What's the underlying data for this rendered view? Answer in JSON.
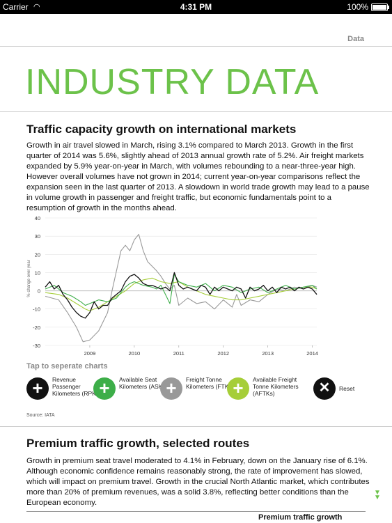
{
  "status_bar": {
    "carrier": "Carrier",
    "wifi_icon": "wifi-icon",
    "time": "4:31 PM",
    "battery": "100%"
  },
  "header": {
    "section": "Data"
  },
  "page_title": "INDUSTRY DATA",
  "section1": {
    "heading": "Traffic capacity growth on international markets",
    "body": "Growth in air travel slowed in March, rising 3.1% compared to March 2013. Growth in the first quarter of 2014 was 5.6%, slightly ahead of 2013 annual growth rate of 5.2%. Air freight markets expanded by 5.9% year-on-year in March, with volumes rebounding to a near-three-year high. However overall volumes have not grown in 2014; current year-on-year comparisons reflect the expansion seen in the last quarter of 2013. A slowdown in world trade growth may lead to a pause in volume growth in passenger and freight traffic, but economic fundamentals point to a resumption of growth in the months ahead."
  },
  "chart_data": {
    "type": "line",
    "ylabel": "% change over year",
    "ylim": [
      -30,
      40
    ],
    "yticks": [
      "40",
      "30",
      "20",
      "10",
      "0",
      "-10",
      "-20",
      "-30"
    ],
    "xticks": [
      "2009",
      "2010",
      "2011",
      "2012",
      "2013",
      "2014"
    ],
    "x_range": [
      2008.0,
      2014.1
    ],
    "series": [
      {
        "name": "RPKs",
        "color": "#111111",
        "points": [
          [
            2008.0,
            2
          ],
          [
            2008.1,
            5
          ],
          [
            2008.2,
            1
          ],
          [
            2008.3,
            3
          ],
          [
            2008.4,
            -2
          ],
          [
            2008.5,
            -5
          ],
          [
            2008.6,
            -9
          ],
          [
            2008.7,
            -12
          ],
          [
            2008.8,
            -14
          ],
          [
            2008.9,
            -15
          ],
          [
            2009.0,
            -12
          ],
          [
            2009.1,
            -6
          ],
          [
            2009.2,
            -10
          ],
          [
            2009.3,
            -8
          ],
          [
            2009.4,
            -8
          ],
          [
            2009.5,
            -4
          ],
          [
            2009.6,
            -2
          ],
          [
            2009.7,
            0
          ],
          [
            2009.8,
            5
          ],
          [
            2009.9,
            8
          ],
          [
            2010.0,
            9
          ],
          [
            2010.1,
            7
          ],
          [
            2010.2,
            4
          ],
          [
            2010.3,
            3
          ],
          [
            2010.4,
            3
          ],
          [
            2010.5,
            2
          ],
          [
            2010.6,
            1
          ],
          [
            2010.7,
            2
          ],
          [
            2010.8,
            0
          ],
          [
            2010.9,
            10
          ],
          [
            2011.0,
            3
          ],
          [
            2011.1,
            1
          ],
          [
            2011.2,
            2
          ],
          [
            2011.3,
            1
          ],
          [
            2011.4,
            0
          ],
          [
            2011.5,
            3
          ],
          [
            2011.6,
            2
          ],
          [
            2011.7,
            -2
          ],
          [
            2011.8,
            2
          ],
          [
            2011.9,
            0
          ],
          [
            2012.0,
            2
          ],
          [
            2012.1,
            1
          ],
          [
            2012.2,
            0
          ],
          [
            2012.3,
            2
          ],
          [
            2012.4,
            1
          ],
          [
            2012.5,
            -4
          ],
          [
            2012.6,
            2
          ],
          [
            2012.7,
            0
          ],
          [
            2012.8,
            1
          ],
          [
            2012.9,
            3
          ],
          [
            2013.0,
            0
          ],
          [
            2013.1,
            2
          ],
          [
            2013.2,
            -1
          ],
          [
            2013.3,
            2
          ],
          [
            2013.4,
            1
          ],
          [
            2013.5,
            2
          ],
          [
            2013.6,
            0
          ],
          [
            2013.7,
            2
          ],
          [
            2013.8,
            1
          ],
          [
            2013.9,
            2
          ],
          [
            2014.0,
            1
          ],
          [
            2014.1,
            -2
          ]
        ]
      },
      {
        "name": "ASKs",
        "color": "#3dae49",
        "points": [
          [
            2008.0,
            1
          ],
          [
            2008.2,
            3
          ],
          [
            2008.4,
            -1
          ],
          [
            2008.6,
            -3
          ],
          [
            2008.8,
            -6
          ],
          [
            2008.9,
            -8
          ],
          [
            2009.0,
            -7
          ],
          [
            2009.2,
            -5
          ],
          [
            2009.4,
            -6
          ],
          [
            2009.6,
            -4
          ],
          [
            2009.8,
            2
          ],
          [
            2009.9,
            4
          ],
          [
            2010.0,
            5
          ],
          [
            2010.2,
            3
          ],
          [
            2010.4,
            2
          ],
          [
            2010.5,
            1
          ],
          [
            2010.6,
            3
          ],
          [
            2010.7,
            -2
          ],
          [
            2010.8,
            -7
          ],
          [
            2010.9,
            9
          ],
          [
            2011.0,
            5
          ],
          [
            2011.2,
            3
          ],
          [
            2011.4,
            2
          ],
          [
            2011.6,
            4
          ],
          [
            2011.8,
            0
          ],
          [
            2012.0,
            3
          ],
          [
            2012.2,
            2
          ],
          [
            2012.4,
            -1
          ],
          [
            2012.6,
            1
          ],
          [
            2012.8,
            2
          ],
          [
            2013.0,
            -1
          ],
          [
            2013.2,
            1
          ],
          [
            2013.4,
            3
          ],
          [
            2013.6,
            1
          ],
          [
            2013.8,
            2
          ],
          [
            2014.0,
            3
          ],
          [
            2014.1,
            1
          ]
        ]
      },
      {
        "name": "FTKs",
        "color": "#999999",
        "points": [
          [
            2008.0,
            -3
          ],
          [
            2008.3,
            -5
          ],
          [
            2008.5,
            -12
          ],
          [
            2008.7,
            -20
          ],
          [
            2008.85,
            -28
          ],
          [
            2009.0,
            -27
          ],
          [
            2009.2,
            -22
          ],
          [
            2009.4,
            -12
          ],
          [
            2009.5,
            0
          ],
          [
            2009.7,
            22
          ],
          [
            2009.8,
            25
          ],
          [
            2009.9,
            22
          ],
          [
            2010.0,
            28
          ],
          [
            2010.1,
            31
          ],
          [
            2010.2,
            22
          ],
          [
            2010.3,
            16
          ],
          [
            2010.5,
            11
          ],
          [
            2010.6,
            8
          ],
          [
            2010.7,
            4
          ],
          [
            2010.8,
            1
          ],
          [
            2010.9,
            3
          ],
          [
            2011.0,
            -8
          ],
          [
            2011.2,
            -4
          ],
          [
            2011.4,
            -7
          ],
          [
            2011.6,
            -6
          ],
          [
            2011.8,
            -10
          ],
          [
            2012.0,
            -5
          ],
          [
            2012.2,
            -9
          ],
          [
            2012.3,
            -2
          ],
          [
            2012.4,
            -8
          ],
          [
            2012.6,
            -5
          ],
          [
            2012.8,
            -6
          ],
          [
            2013.0,
            -2
          ],
          [
            2013.2,
            1
          ],
          [
            2013.4,
            0
          ],
          [
            2013.6,
            2
          ],
          [
            2013.8,
            1
          ],
          [
            2014.0,
            3
          ],
          [
            2014.1,
            2
          ]
        ]
      },
      {
        "name": "AFTKs",
        "color": "#a6ce39",
        "points": [
          [
            2008.0,
            -1
          ],
          [
            2008.3,
            -2
          ],
          [
            2008.5,
            -4
          ],
          [
            2008.7,
            -7
          ],
          [
            2008.9,
            -10
          ],
          [
            2009.0,
            -11
          ],
          [
            2009.2,
            -9
          ],
          [
            2009.4,
            -6
          ],
          [
            2009.6,
            -3
          ],
          [
            2009.8,
            0
          ],
          [
            2010.0,
            4
          ],
          [
            2010.2,
            6
          ],
          [
            2010.4,
            7
          ],
          [
            2010.6,
            5
          ],
          [
            2010.8,
            4
          ],
          [
            2011.0,
            5
          ],
          [
            2011.2,
            2
          ],
          [
            2011.4,
            0
          ],
          [
            2011.6,
            -2
          ],
          [
            2011.8,
            -3
          ],
          [
            2012.0,
            -4
          ],
          [
            2012.2,
            -5
          ],
          [
            2012.4,
            -5
          ],
          [
            2012.6,
            -4
          ],
          [
            2012.8,
            -3
          ],
          [
            2013.0,
            -2
          ],
          [
            2013.2,
            -1
          ],
          [
            2013.4,
            0
          ],
          [
            2013.6,
            1
          ],
          [
            2013.8,
            2
          ],
          [
            2014.0,
            2
          ],
          [
            2014.1,
            1
          ]
        ]
      }
    ]
  },
  "legend": {
    "tap_label": "Tap to seperate charts",
    "items": [
      {
        "label": "Revenue Passenger Kilometers (RPKs)",
        "color": "#111111",
        "symbol": "+"
      },
      {
        "label": "Available Seat Kilometers (ASKs)",
        "color": "#3dae49",
        "symbol": "+"
      },
      {
        "label": "Freight Tonne Kilometers (FTKs)",
        "color": "#999999",
        "symbol": "+"
      },
      {
        "label": "Available Freight Tonne Kilometers (AFTKs)",
        "color": "#a6ce39",
        "symbol": "+"
      },
      {
        "label": "Reset",
        "color": "#111111",
        "symbol": "✕"
      }
    ],
    "source": "Source: IATA"
  },
  "section2": {
    "heading": "Premium traffic growth, selected routes",
    "body": "Growth in premium seat travel moderated to 4.1% in February, down on the January rise of 6.1%. Although economic confidence remains reasonably strong, the rate of improvement has slowed, which will impact on premium travel. Growth in the crucial North Atlantic market, which contributes more than 20% of premium revenues, was a solid 3.8%, reflecting better conditions than the European economy.",
    "table_title": "Premium traffic growth"
  },
  "colors": {
    "accent": "#6cc24a"
  }
}
